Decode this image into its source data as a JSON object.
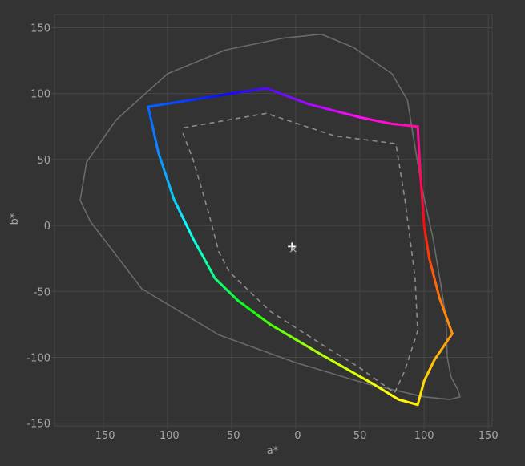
{
  "chart_data": {
    "type": "line",
    "xlabel": "a*",
    "ylabel": "b*",
    "xlim": [
      -188,
      153
    ],
    "ylim": [
      -152,
      160
    ],
    "xticks": [
      -150,
      -100,
      -50,
      0,
      50,
      100,
      150
    ],
    "xtick_labels": [
      "-150",
      "-100",
      "-50",
      "-0",
      "50",
      "100",
      "150"
    ],
    "yticks": [
      150,
      100,
      50,
      0,
      -50,
      -100,
      -150
    ],
    "ytick_labels": [
      "150",
      "100",
      "50",
      "0",
      "-50",
      "-100",
      "-150"
    ],
    "grid": true,
    "colors": {
      "background": "#333333",
      "grid": "#474747",
      "outline": "#6a6a6a",
      "dashed": "#8c8c8c",
      "marker": "#ffffff"
    },
    "series": [
      {
        "kind": "outline-solid",
        "points": [
          [
            -168,
            19
          ],
          [
            -163,
            48
          ],
          [
            -140,
            80
          ],
          [
            -100,
            115
          ],
          [
            -55,
            133
          ],
          [
            -10,
            142
          ],
          [
            20,
            145
          ],
          [
            45,
            135
          ],
          [
            75,
            115
          ],
          [
            87,
            95
          ],
          [
            92,
            65
          ],
          [
            98,
            30
          ],
          [
            107,
            -10
          ],
          [
            113,
            -45
          ],
          [
            117,
            -70
          ],
          [
            118,
            -100
          ],
          [
            121,
            -115
          ],
          [
            126,
            -124
          ],
          [
            128,
            -130
          ],
          [
            120,
            -132
          ],
          [
            100,
            -130
          ],
          [
            55,
            -120
          ],
          [
            0,
            -104
          ],
          [
            -60,
            -83
          ],
          [
            -120,
            -48
          ],
          [
            -160,
            3
          ],
          [
            -168,
            19
          ]
        ]
      },
      {
        "kind": "dashed",
        "points": [
          [
            -88,
            70
          ],
          [
            -80,
            50
          ],
          [
            -68,
            10
          ],
          [
            -60,
            -20
          ],
          [
            -52,
            -35
          ],
          [
            -20,
            -65
          ],
          [
            20,
            -90
          ],
          [
            50,
            -108
          ],
          [
            77,
            -127
          ],
          [
            85,
            -110
          ],
          [
            95,
            -80
          ],
          [
            93,
            -40
          ],
          [
            85,
            20
          ],
          [
            78,
            62
          ],
          [
            30,
            68
          ],
          [
            -23,
            85
          ],
          [
            -88,
            74
          ]
        ]
      },
      {
        "kind": "colored",
        "points": [
          [
            -115,
            90
          ],
          [
            -95,
            93
          ],
          [
            -50,
            100
          ],
          [
            -23,
            104
          ],
          [
            10,
            92
          ],
          [
            50,
            82
          ],
          [
            75,
            77
          ],
          [
            95,
            75
          ],
          [
            97,
            40
          ],
          [
            100,
            0
          ],
          [
            104,
            -25
          ],
          [
            112,
            -55
          ],
          [
            122,
            -82
          ],
          [
            108,
            -102
          ],
          [
            100,
            -118
          ],
          [
            95,
            -136
          ],
          [
            80,
            -132
          ],
          [
            60,
            -120
          ],
          [
            20,
            -98
          ],
          [
            -20,
            -75
          ],
          [
            -45,
            -57
          ],
          [
            -63,
            -40
          ],
          [
            -80,
            -10
          ],
          [
            -95,
            20
          ],
          [
            -107,
            55
          ],
          [
            -115,
            90
          ]
        ]
      }
    ],
    "markers": [
      {
        "symbol": "+",
        "x": -3,
        "y": -16
      },
      {
        "symbol": "x",
        "x": -2,
        "y": -18
      }
    ]
  }
}
